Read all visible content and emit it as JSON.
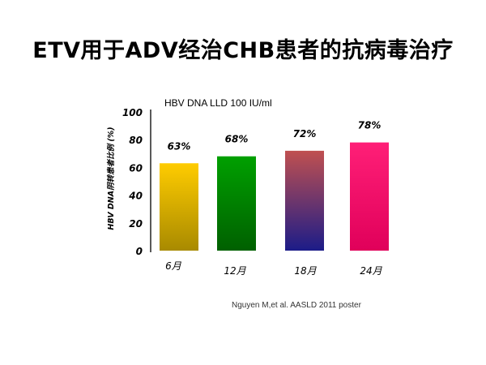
{
  "slide": {
    "title": "ETV用于ADV经治CHB患者的抗病毒治疗",
    "citation": "Nguyen M,et al. AASLD 2011 poster"
  },
  "chart_data": {
    "type": "bar",
    "subtitle": "HBV DNA LLD 100 IU/ml",
    "ylabel": "HBV DNA阴转患者比例 (%)",
    "xlabel": "",
    "categories": [
      "6月",
      "12月",
      "18月",
      "24月"
    ],
    "values": [
      63,
      68,
      72,
      78
    ],
    "data_labels": [
      "63%",
      "68%",
      "72%",
      "78%"
    ],
    "ylim": [
      0,
      100
    ],
    "yticks": [
      0,
      20,
      40,
      60,
      80,
      100
    ],
    "grid": false,
    "legend": "none",
    "bar_gradients": [
      {
        "top": "#ffcc00",
        "bottom": "#a88a00"
      },
      {
        "top": "#00a000",
        "bottom": "#006000"
      },
      {
        "top": "#c05050",
        "bottom": "#1c1c88"
      },
      {
        "top": "#ff1f77",
        "bottom": "#e0005a"
      }
    ]
  }
}
